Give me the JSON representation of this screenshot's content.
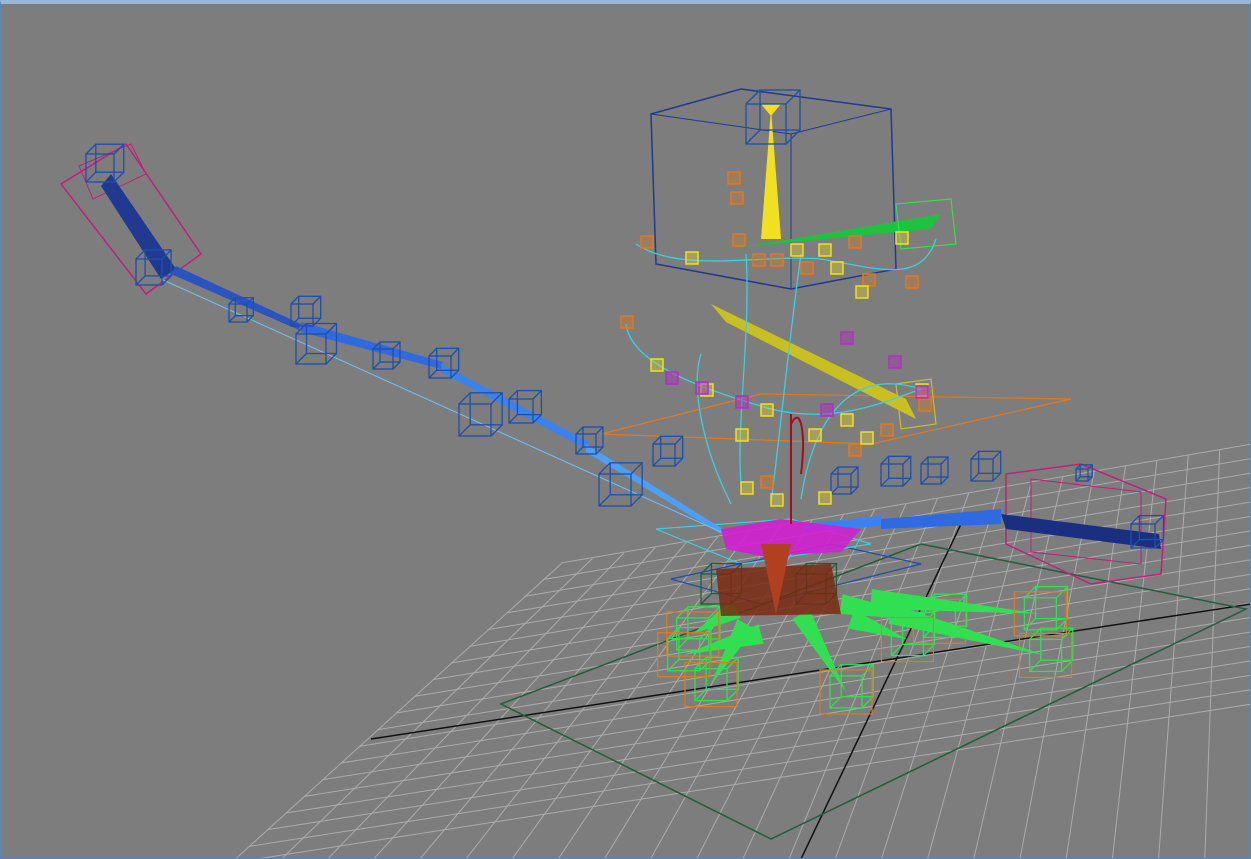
{
  "viewport": {
    "name": "3d-viewport",
    "background": "#7d7d7d",
    "border_color": "#5b86b8"
  },
  "colors": {
    "grid": "#b4b4b4",
    "axis": "#1a1a1a",
    "dark_green": "#1f5f3f",
    "blue": "#1f4fa8",
    "light_blue": "#2f8ff0",
    "magenta": "#c0207a",
    "cyan": "#3ad0e0",
    "yellow": "#f0e020",
    "orange": "#e07a20",
    "green": "#30e050",
    "purple": "#b030c0",
    "brown": "#7a2a10"
  },
  "icons": [
    "rig-controller-icon",
    "ik-handle-icon",
    "bone-icon",
    "locator-icon"
  ]
}
